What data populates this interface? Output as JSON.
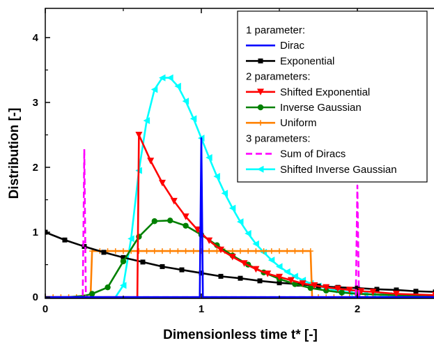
{
  "chart_data": {
    "type": "line",
    "title": "",
    "xlabel": "Dimensionless time t* [-]",
    "ylabel": "Distribution [-]",
    "xlim": [
      0,
      2.5
    ],
    "ylim": [
      -0.02,
      4.45
    ],
    "xticks": [
      0,
      1,
      2
    ],
    "yticks": [
      0,
      1,
      2,
      3,
      4
    ],
    "grid": false,
    "legend_position": "top-right",
    "legend": [
      {
        "kind": "header",
        "label": "1 parameter:"
      },
      {
        "kind": "series",
        "series": "Dirac"
      },
      {
        "kind": "series",
        "series": "Exponential"
      },
      {
        "kind": "header",
        "label": "2 parameters:"
      },
      {
        "kind": "series",
        "series": "Shifted Exponential"
      },
      {
        "kind": "series",
        "series": "Inverse Gaussian"
      },
      {
        "kind": "series",
        "series": "Uniform"
      },
      {
        "kind": "header",
        "label": "3 parameters:"
      },
      {
        "kind": "series",
        "series": "Sum of Diracs"
      },
      {
        "kind": "series",
        "series": "Shifted Inverse Gaussian"
      }
    ],
    "series": [
      {
        "name": "Dirac",
        "color": "#0000ff",
        "style": "solid",
        "marker": "none",
        "x": [
          0,
          0.99,
          1.0,
          1.01,
          2.5
        ],
        "y": [
          0,
          0,
          2.45,
          0,
          0
        ]
      },
      {
        "name": "Exponential",
        "color": "#000000",
        "style": "solid",
        "marker": "square",
        "x": [
          0,
          0.125,
          0.25,
          0.375,
          0.5,
          0.625,
          0.75,
          0.875,
          1.0,
          1.125,
          1.25,
          1.375,
          1.5,
          1.625,
          1.75,
          1.875,
          2.0,
          2.125,
          2.25,
          2.375,
          2.5
        ],
        "y": [
          1.0,
          0.88,
          0.78,
          0.69,
          0.61,
          0.54,
          0.47,
          0.42,
          0.37,
          0.32,
          0.29,
          0.25,
          0.22,
          0.2,
          0.17,
          0.15,
          0.14,
          0.12,
          0.11,
          0.09,
          0.08
        ]
      },
      {
        "name": "Shifted Exponential",
        "color": "#ff0000",
        "style": "solid",
        "marker": "triangle-down",
        "x": [
          0,
          0.59,
          0.6,
          0.675,
          0.75,
          0.825,
          0.9,
          0.975,
          1.05,
          1.125,
          1.2,
          1.275,
          1.35,
          1.425,
          1.5,
          1.575,
          1.65,
          1.725,
          1.8,
          1.875,
          1.95,
          2.025,
          2.1,
          2.25,
          2.5
        ],
        "y": [
          0,
          0,
          2.5,
          2.1,
          1.76,
          1.48,
          1.24,
          1.04,
          0.87,
          0.73,
          0.62,
          0.52,
          0.43,
          0.36,
          0.31,
          0.26,
          0.21,
          0.18,
          0.15,
          0.13,
          0.11,
          0.09,
          0.08,
          0.05,
          0.03
        ]
      },
      {
        "name": "Inverse Gaussian",
        "color": "#008000",
        "style": "solid",
        "marker": "circle",
        "x": [
          0,
          0.15,
          0.25,
          0.3,
          0.4,
          0.5,
          0.6,
          0.7,
          0.8,
          0.9,
          1.0,
          1.1,
          1.2,
          1.3,
          1.4,
          1.5,
          1.6,
          1.7,
          1.8,
          1.9,
          2.0,
          2.5
        ],
        "y": [
          0,
          0,
          0.02,
          0.05,
          0.15,
          0.55,
          0.93,
          1.17,
          1.18,
          1.1,
          0.96,
          0.8,
          0.64,
          0.5,
          0.38,
          0.28,
          0.2,
          0.14,
          0.1,
          0.07,
          0.05,
          0.01
        ]
      },
      {
        "name": "Uniform",
        "color": "#ff8000",
        "style": "solid",
        "marker": "plus",
        "x": [
          0,
          0.29,
          0.3,
          1.7,
          1.71,
          2.5
        ],
        "y": [
          0,
          0,
          0.71,
          0.71,
          0,
          0
        ]
      },
      {
        "name": "Sum of Diracs",
        "color": "#ff00ff",
        "style": "dashed",
        "marker": "none",
        "x": [
          0,
          0.24,
          0.25,
          0.26,
          1.99,
          2.0,
          2.01,
          2.5
        ],
        "y": [
          0,
          0,
          2.28,
          0,
          0,
          1.72,
          0,
          0
        ]
      },
      {
        "name": "Shifted Inverse Gaussian",
        "color": "#00ffff",
        "style": "solid",
        "marker": "triangle-left",
        "x": [
          0,
          0.45,
          0.5,
          0.55,
          0.6,
          0.65,
          0.7,
          0.75,
          0.8,
          0.85,
          0.9,
          0.95,
          1.0,
          1.05,
          1.1,
          1.15,
          1.2,
          1.25,
          1.3,
          1.35,
          1.4,
          1.45,
          1.5,
          1.55,
          1.6,
          1.65,
          1.7,
          1.75,
          1.8,
          1.85,
          1.9,
          1.95,
          2.0,
          2.05,
          2.1,
          2.15,
          2.2,
          2.25,
          2.3,
          2.4,
          2.5
        ],
        "y": [
          0,
          0,
          0.18,
          0.9,
          1.95,
          2.72,
          3.2,
          3.38,
          3.38,
          3.25,
          3.02,
          2.75,
          2.45,
          2.15,
          1.86,
          1.6,
          1.37,
          1.16,
          0.98,
          0.82,
          0.69,
          0.57,
          0.47,
          0.39,
          0.32,
          0.26,
          0.21,
          0.17,
          0.14,
          0.11,
          0.09,
          0.07,
          0.06,
          0.05,
          0.04,
          0.03,
          0.025,
          0.02,
          0.015,
          0.01,
          0.005
        ]
      }
    ]
  }
}
